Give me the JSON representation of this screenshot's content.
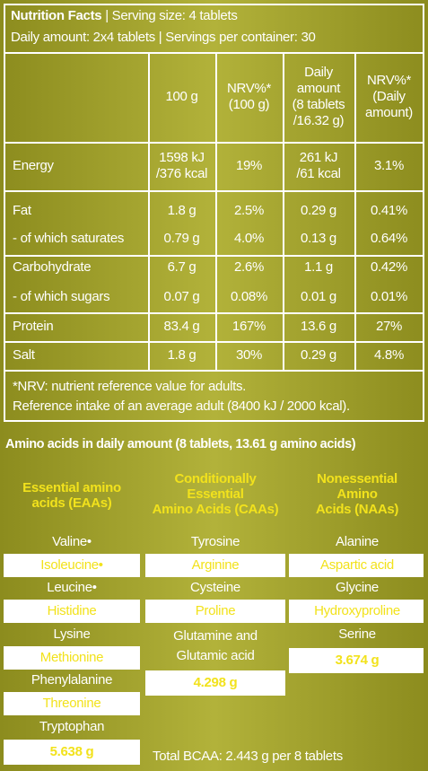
{
  "header": {
    "title": "Nutrition Facts",
    "serving": "| Serving size: 4 tablets",
    "daily": "Daily amount: 2x4 tablets | Servings per container: 30"
  },
  "table": {
    "columns": [
      [
        "100 g"
      ],
      [
        "NRV%*",
        "(100 g)"
      ],
      [
        "Daily",
        "amount",
        "(8 tablets",
        "/16.32 g)"
      ],
      [
        "NRV%*",
        "(Daily",
        "amount)"
      ]
    ],
    "rows": [
      {
        "label": "Energy",
        "cells": [
          [
            "1598 kJ",
            "/376 kcal"
          ],
          [
            "19%"
          ],
          [
            "261 kJ",
            "/61 kcal"
          ],
          [
            "3.1%"
          ]
        ]
      },
      {
        "label": "Fat",
        "cells": [
          [
            "1.8 g"
          ],
          [
            "2.5%"
          ],
          [
            "0.29 g"
          ],
          [
            "0.41%"
          ]
        ]
      },
      {
        "label": "- of which saturates",
        "cells": [
          [
            "0.79 g"
          ],
          [
            "4.0%"
          ],
          [
            "0.13 g"
          ],
          [
            "0.64%"
          ]
        ]
      },
      {
        "label": "Carbohydrate",
        "cells": [
          [
            "6.7 g"
          ],
          [
            "2.6%"
          ],
          [
            "1.1 g"
          ],
          [
            "0.42%"
          ]
        ]
      },
      {
        "label": "- of which sugars",
        "cells": [
          [
            "0.07 g"
          ],
          [
            "0.08%"
          ],
          [
            "0.01 g"
          ],
          [
            "0.01%"
          ]
        ]
      },
      {
        "label": "Protein",
        "cells": [
          [
            "83.4 g"
          ],
          [
            "167%"
          ],
          [
            "13.6 g"
          ],
          [
            "27%"
          ]
        ]
      },
      {
        "label": "Salt",
        "cells": [
          [
            "1.8 g"
          ],
          [
            "30%"
          ],
          [
            "0.29 g"
          ],
          [
            "4.8%"
          ]
        ]
      }
    ],
    "footnote": [
      "*NRV: nutrient reference value for adults.",
      "Reference intake of an average adult (8400 kJ / 2000 kcal)."
    ]
  },
  "amino": {
    "title": "Amino acids in daily amount (8 tablets, 13.61 g amino acids)",
    "columns": [
      {
        "title": [
          "Essential amino",
          "acids (EAAs)"
        ],
        "items": [
          [
            "Valine•"
          ],
          [
            "Isoleucine•"
          ],
          [
            "Leucine•"
          ],
          [
            "Histidine"
          ],
          [
            "Lysine"
          ],
          [
            "Methionine"
          ],
          [
            "Phenylalanine"
          ],
          [
            "Threonine"
          ],
          [
            "Tryptophan"
          ]
        ],
        "total": "5.638 g"
      },
      {
        "title": [
          "Conditionally",
          "Essential",
          "Amino Acids (CAAs)"
        ],
        "items": [
          [
            "Tyrosine"
          ],
          [
            "Arginine"
          ],
          [
            "Cysteine"
          ],
          [
            "Proline"
          ],
          [
            "Glutamine and",
            "Glutamic acid"
          ]
        ],
        "total": "4.298 g"
      },
      {
        "title": [
          "Nonessential",
          "Amino",
          "Acids (NAAs)"
        ],
        "items": [
          [
            "Alanine"
          ],
          [
            "Aspartic acid"
          ],
          [
            "Glycine"
          ],
          [
            "Hydroxyproline"
          ],
          [
            "Serine"
          ]
        ],
        "total": "3.674 g"
      }
    ],
    "bcaa": "Total BCAA: 2.443 g per 8 tablets"
  }
}
